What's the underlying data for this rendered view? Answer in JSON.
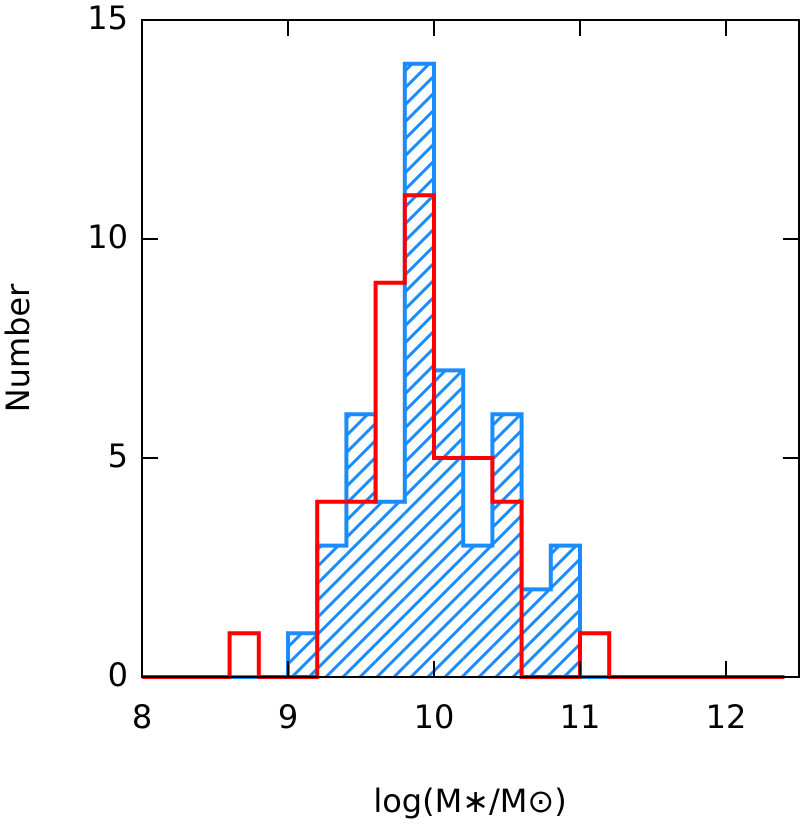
{
  "chart_data": {
    "type": "histogram",
    "xlabel": "log(M∗/M⊙)",
    "ylabel": "Number",
    "bins": [
      8.0,
      8.2,
      8.4,
      8.6,
      8.8,
      9.0,
      9.2,
      9.4,
      9.6,
      9.8,
      10.0,
      10.2,
      10.4,
      10.6,
      10.8,
      11.0,
      11.2,
      11.4,
      11.6,
      11.8,
      12.0,
      12.2,
      12.4
    ],
    "series": [
      {
        "color": "#1a8cff",
        "hatch": true,
        "values": [
          0,
          0,
          0,
          0,
          0,
          1,
          3,
          6,
          4,
          14,
          7,
          3,
          6,
          2,
          3,
          0,
          0,
          0,
          0,
          0,
          0,
          0
        ]
      },
      {
        "color": "#ff0000",
        "hatch": false,
        "values": [
          0,
          0,
          0,
          1,
          0,
          0,
          4,
          4,
          9,
          11,
          5,
          5,
          4,
          0,
          0,
          1,
          0,
          0,
          0,
          0,
          0,
          0
        ]
      }
    ],
    "xlim": [
      8,
      12.5
    ],
    "ylim": [
      0,
      15
    ],
    "xticks": [
      8,
      9,
      10,
      11,
      12
    ],
    "yticks": [
      0,
      5,
      10,
      15
    ]
  }
}
